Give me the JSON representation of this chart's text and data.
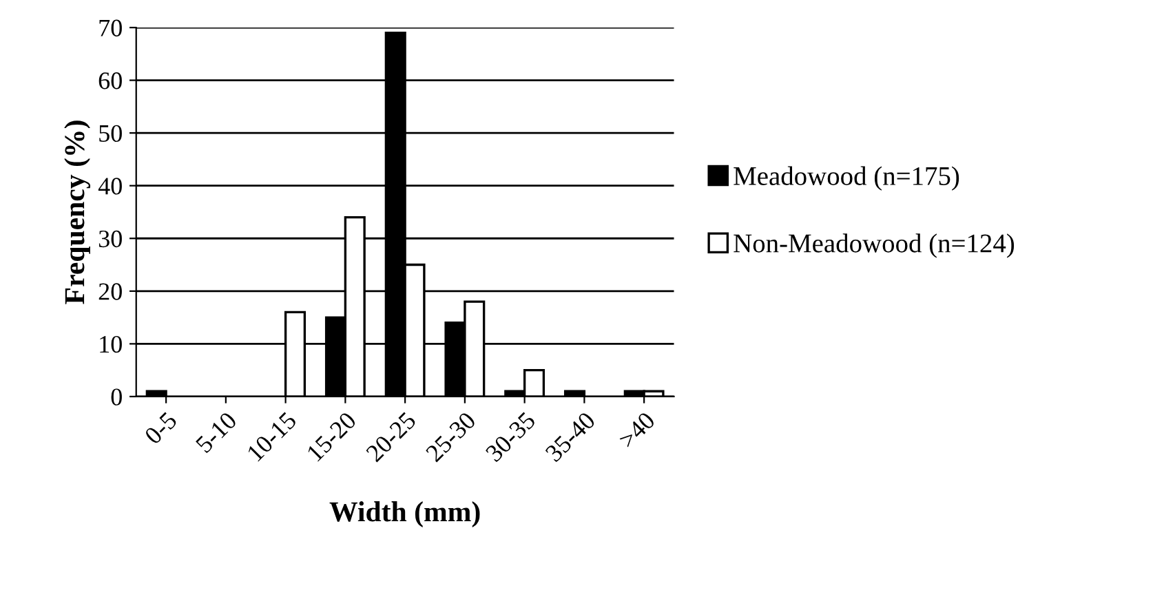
{
  "chart_data": {
    "type": "bar",
    "xlabel": "Width (mm)",
    "ylabel": "Frequency (%)",
    "categories": [
      "0-5",
      "5-10",
      "10-15",
      "15-20",
      "20-25",
      "25-30",
      "30-35",
      "35-40",
      ">40"
    ],
    "series": [
      {
        "name": "Meadowood (n=175)",
        "color": "#000000",
        "values": [
          1,
          0,
          0,
          15,
          69,
          14,
          1,
          1,
          1
        ]
      },
      {
        "name": "Non-Meadowood (n=124)",
        "color": "#ffffff",
        "values": [
          0,
          0,
          16,
          34,
          25,
          18,
          5,
          0,
          1
        ]
      }
    ],
    "ylim": [
      0,
      70
    ],
    "yticks": [
      0,
      10,
      20,
      30,
      40,
      50,
      60,
      70
    ],
    "grid": "y",
    "legend": "right"
  }
}
